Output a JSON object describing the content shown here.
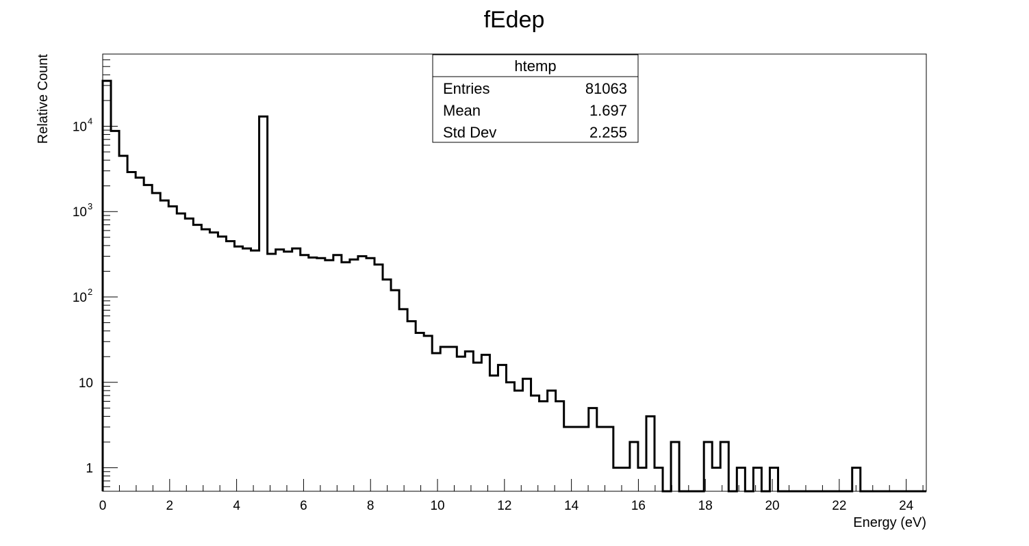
{
  "chart_data": {
    "type": "histogram",
    "title": "fEdep",
    "xlabel": "Energy (eV)",
    "ylabel": "Relative Count",
    "xlim": [
      0,
      24.6
    ],
    "ylim": [
      0.53,
      70000
    ],
    "y_scale": "log",
    "x_ticks": [
      0,
      2,
      4,
      6,
      8,
      10,
      12,
      14,
      16,
      18,
      20,
      22,
      24
    ],
    "y_ticks": [
      {
        "value": 1,
        "base": "1",
        "exp": ""
      },
      {
        "value": 10,
        "base": "10",
        "exp": ""
      },
      {
        "value": 100,
        "base": "10",
        "exp": "2"
      },
      {
        "value": 1000,
        "base": "10",
        "exp": "3"
      },
      {
        "value": 10000,
        "base": "10",
        "exp": "4"
      }
    ],
    "bin_width": 0.246,
    "counts": [
      34000,
      8800,
      4500,
      2900,
      2500,
      2050,
      1650,
      1350,
      1150,
      950,
      830,
      700,
      620,
      570,
      510,
      450,
      390,
      370,
      350,
      13000,
      320,
      360,
      340,
      370,
      310,
      290,
      285,
      270,
      310,
      255,
      275,
      300,
      285,
      240,
      160,
      120,
      72,
      52,
      38,
      35,
      22,
      26,
      26,
      20,
      23,
      17,
      21,
      12,
      16,
      10,
      8,
      11,
      7,
      6,
      8,
      6,
      3,
      3,
      3,
      5,
      3,
      3,
      1,
      1,
      2,
      1,
      4,
      1,
      0,
      2,
      0,
      0,
      0,
      2,
      1,
      2,
      0,
      1,
      0,
      1,
      0,
      1,
      0,
      0,
      0,
      0,
      0,
      0,
      0,
      0,
      0,
      1,
      0,
      0,
      0,
      0,
      0,
      0,
      0,
      0
    ],
    "legend": "top-center",
    "grid": false,
    "stats": {
      "name": "htemp",
      "rows": [
        {
          "label": "Entries",
          "value": "81063"
        },
        {
          "label": "Mean",
          "value": "1.697"
        },
        {
          "label": "Std Dev",
          "value": "2.255"
        }
      ]
    }
  }
}
